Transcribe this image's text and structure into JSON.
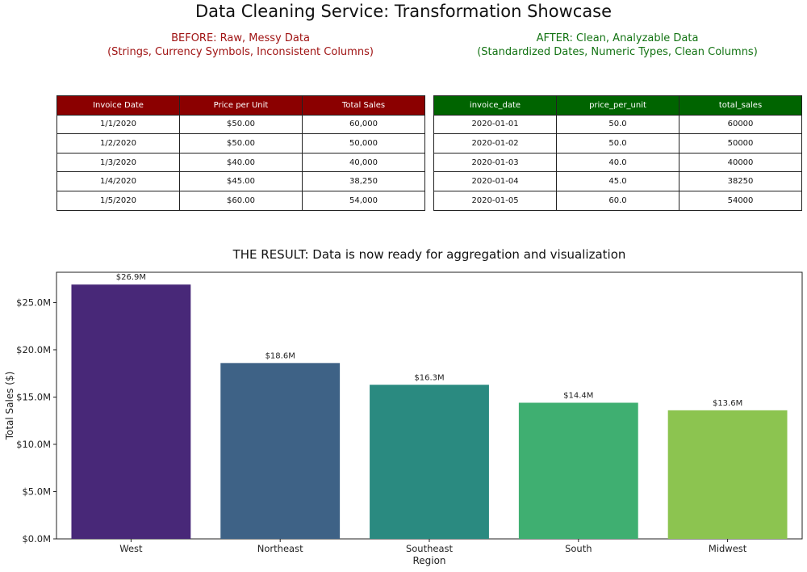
{
  "title": "Data Cleaning Service: Transformation Showcase",
  "before": {
    "heading_line1": "BEFORE: Raw, Messy Data",
    "heading_line2": "(Strings, Currency Symbols, Inconsistent Columns)",
    "columns": [
      "Invoice Date",
      "Price per Unit",
      "Total Sales"
    ],
    "rows": [
      [
        "1/1/2020",
        "$50.00",
        "60,000"
      ],
      [
        "1/2/2020",
        "$50.00",
        "50,000"
      ],
      [
        "1/3/2020",
        "$40.00",
        "40,000"
      ],
      [
        "1/4/2020",
        "$45.00",
        "38,250"
      ],
      [
        "1/5/2020",
        "$60.00",
        "54,000"
      ]
    ],
    "header_color": "#8b0000"
  },
  "after": {
    "heading_line1": "AFTER: Clean, Analyzable Data",
    "heading_line2": "(Standardized Dates, Numeric Types, Clean Columns)",
    "columns": [
      "invoice_date",
      "price_per_unit",
      "total_sales"
    ],
    "rows": [
      [
        "2020-01-01",
        "50.0",
        "60000"
      ],
      [
        "2020-01-02",
        "50.0",
        "50000"
      ],
      [
        "2020-01-03",
        "40.0",
        "40000"
      ],
      [
        "2020-01-04",
        "45.0",
        "38250"
      ],
      [
        "2020-01-05",
        "60.0",
        "54000"
      ]
    ],
    "header_color": "#006400"
  },
  "chart_data": {
    "type": "bar",
    "title": "THE RESULT: Data is now ready for aggregation and visualization",
    "xlabel": "Region",
    "ylabel": "Total Sales ($)",
    "categories": [
      "West",
      "Northeast",
      "Southeast",
      "South",
      "Midwest"
    ],
    "values": [
      26.9,
      18.6,
      16.3,
      14.4,
      13.6
    ],
    "value_unit": "millions of dollars",
    "data_labels": [
      "$26.9M",
      "$18.6M",
      "$16.3M",
      "$14.4M",
      "$13.6M"
    ],
    "yticks": [
      0,
      5,
      10,
      15,
      20,
      25
    ],
    "ytick_labels": [
      "$0.0M",
      "$5.0M",
      "$10.0M",
      "$15.0M",
      "$20.0M",
      "$25.0M"
    ],
    "ylim": [
      0,
      28.2
    ],
    "colors": [
      "#482878",
      "#3e6286",
      "#2a8a80",
      "#3faf71",
      "#8cc450"
    ],
    "grid": false
  }
}
